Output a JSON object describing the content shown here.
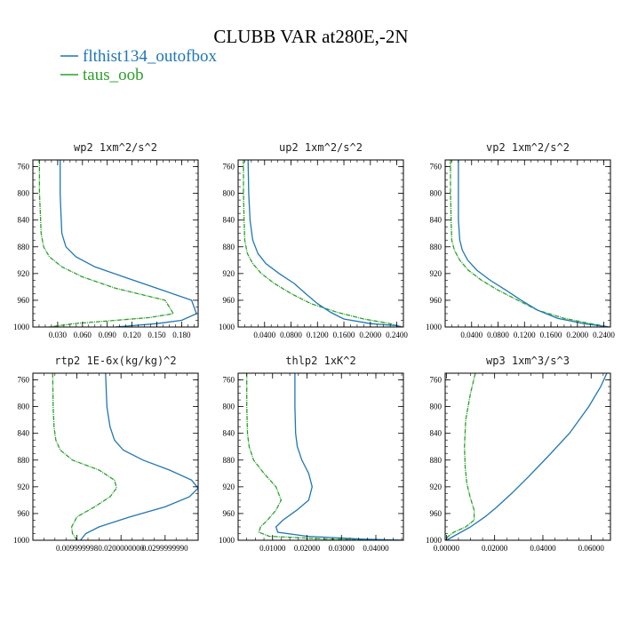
{
  "figure": {
    "title": "CLUBB VAR at280E,-2N",
    "legend": [
      {
        "label": "flthist134_outofbox",
        "color": "#1f77b4"
      },
      {
        "label": "taus_oob",
        "color": "#2ca02c"
      }
    ]
  },
  "chart_data": [
    {
      "type": "line",
      "title": "wp2   1xm^2/s^2",
      "xlim": [
        0.0,
        0.2
      ],
      "ylim": [
        1000,
        750
      ],
      "yticks": [
        760,
        800,
        840,
        880,
        920,
        960,
        1000
      ],
      "xticks": [
        0.03,
        0.06,
        0.09,
        0.12,
        0.15,
        0.18
      ],
      "xtick_labels": [
        "0.030",
        "0.060",
        "0.090",
        "0.120",
        "0.150",
        "0.180"
      ],
      "series": [
        {
          "name": "flthist134_outofbox",
          "color": "#1f77b4",
          "x": [
            0.033,
            0.033,
            0.034,
            0.035,
            0.04,
            0.052,
            0.075,
            0.11,
            0.15,
            0.192,
            0.198,
            0.18,
            0.15,
            0.12,
            0.1
          ],
          "y": [
            750,
            800,
            830,
            860,
            880,
            895,
            910,
            925,
            942,
            960,
            980,
            990,
            995,
            998,
            1000
          ]
        },
        {
          "name": "taus_oob",
          "color": "#2ca02c",
          "x": [
            0.008,
            0.008,
            0.009,
            0.01,
            0.013,
            0.02,
            0.035,
            0.06,
            0.1,
            0.16,
            0.17,
            0.14,
            0.1,
            0.05,
            0.02
          ],
          "y": [
            750,
            800,
            830,
            860,
            880,
            895,
            910,
            925,
            942,
            960,
            980,
            986,
            990,
            995,
            1000
          ]
        }
      ]
    },
    {
      "type": "line",
      "title": "up2   1xm^2/s^2",
      "xlim": [
        0.0,
        0.25
      ],
      "ylim": [
        1000,
        750
      ],
      "yticks": [
        760,
        800,
        840,
        880,
        920,
        960,
        1000
      ],
      "xticks": [
        0.04,
        0.08,
        0.12,
        0.16,
        0.2,
        0.24
      ],
      "xtick_labels": [
        "0.0400",
        "0.0800",
        "0.1200",
        "0.1600",
        "0.2000",
        "0.2400"
      ],
      "series": [
        {
          "name": "flthist134_outofbox",
          "color": "#1f77b4",
          "x": [
            0.015,
            0.016,
            0.018,
            0.022,
            0.03,
            0.042,
            0.062,
            0.085,
            0.102,
            0.12,
            0.14,
            0.16,
            0.2,
            0.24,
            0.248
          ],
          "y": [
            750,
            800,
            840,
            870,
            890,
            905,
            920,
            935,
            950,
            965,
            978,
            988,
            995,
            998,
            1000
          ]
        },
        {
          "name": "taus_oob",
          "color": "#2ca02c",
          "x": [
            0.008,
            0.008,
            0.009,
            0.01,
            0.014,
            0.022,
            0.035,
            0.055,
            0.08,
            0.11,
            0.15,
            0.19,
            0.23,
            0.248
          ],
          "y": [
            750,
            800,
            840,
            870,
            890,
            905,
            920,
            935,
            950,
            965,
            978,
            988,
            995,
            1000
          ]
        }
      ]
    },
    {
      "type": "line",
      "title": "vp2   1xm^2/s^2",
      "xlim": [
        0.0,
        0.25
      ],
      "ylim": [
        1000,
        750
      ],
      "yticks": [
        760,
        800,
        840,
        880,
        920,
        960,
        1000
      ],
      "xticks": [
        0.04,
        0.08,
        0.12,
        0.16,
        0.2,
        0.24
      ],
      "xtick_labels": [
        "0.0400",
        "0.0800",
        "0.1200",
        "0.1600",
        "0.2000",
        "0.2400"
      ],
      "series": [
        {
          "name": "flthist134_outofbox",
          "color": "#1f77b4",
          "x": [
            0.02,
            0.02,
            0.02,
            0.022,
            0.026,
            0.034,
            0.048,
            0.068,
            0.092,
            0.115,
            0.14,
            0.17,
            0.21,
            0.248
          ],
          "y": [
            750,
            800,
            840,
            870,
            885,
            900,
            915,
            930,
            945,
            960,
            975,
            987,
            995,
            1000
          ]
        },
        {
          "name": "taus_oob",
          "color": "#2ca02c",
          "x": [
            0.008,
            0.008,
            0.009,
            0.01,
            0.014,
            0.022,
            0.035,
            0.055,
            0.08,
            0.11,
            0.14,
            0.18,
            0.22,
            0.248
          ],
          "y": [
            750,
            800,
            840,
            870,
            885,
            900,
            915,
            930,
            945,
            960,
            975,
            987,
            995,
            1000
          ]
        }
      ]
    },
    {
      "type": "line",
      "title": "rtp2   1E-6x(kg/kg)^2",
      "xlim": [
        0.0,
        0.0375
      ],
      "ylim": [
        1000,
        750
      ],
      "yticks": [
        760,
        800,
        840,
        880,
        920,
        960,
        1000
      ],
      "xticks": [
        0.01,
        0.02,
        0.03
      ],
      "xtick_labels": [
        "0.009999998",
        "0.0200000000",
        "0.0299999990"
      ],
      "series": [
        {
          "name": "flthist134_outofbox",
          "color": "#1f77b4",
          "x": [
            0.0165,
            0.0168,
            0.0175,
            0.0185,
            0.0205,
            0.025,
            0.031,
            0.036,
            0.0375,
            0.0355,
            0.03,
            0.022,
            0.015,
            0.012,
            0.0108
          ],
          "y": [
            750,
            800,
            830,
            850,
            865,
            880,
            895,
            910,
            922,
            935,
            950,
            965,
            980,
            990,
            1000
          ]
        },
        {
          "name": "taus_oob",
          "color": "#2ca02c",
          "x": [
            0.0045,
            0.0046,
            0.0048,
            0.0052,
            0.0062,
            0.009,
            0.015,
            0.0185,
            0.019,
            0.0175,
            0.014,
            0.01,
            0.0088,
            0.009,
            0.01
          ],
          "y": [
            750,
            800,
            830,
            850,
            865,
            880,
            895,
            910,
            922,
            935,
            950,
            965,
            980,
            990,
            1000
          ]
        }
      ]
    },
    {
      "type": "line",
      "title": "thlp2   1xK^2",
      "xlim": [
        0.0,
        0.048
      ],
      "ylim": [
        1000,
        750
      ],
      "yticks": [
        760,
        800,
        840,
        880,
        920,
        960,
        1000
      ],
      "xticks": [
        0.01,
        0.02,
        0.03,
        0.04
      ],
      "xtick_labels": [
        "0.01000",
        "0.02000",
        "0.03000",
        "0.04000"
      ],
      "series": [
        {
          "name": "flthist134_outofbox",
          "color": "#1f77b4",
          "x": [
            0.0165,
            0.0165,
            0.0167,
            0.0172,
            0.0185,
            0.0205,
            0.0215,
            0.0205,
            0.017,
            0.013,
            0.011,
            0.0115,
            0.02,
            0.035,
            0.048
          ],
          "y": [
            750,
            800,
            840,
            860,
            880,
            900,
            920,
            940,
            955,
            970,
            980,
            988,
            994,
            998,
            1000
          ]
        },
        {
          "name": "taus_oob",
          "color": "#2ca02c",
          "x": [
            0.0025,
            0.0025,
            0.0027,
            0.0032,
            0.0045,
            0.0075,
            0.011,
            0.0125,
            0.011,
            0.0085,
            0.0065,
            0.006,
            0.009,
            0.025,
            0.048
          ],
          "y": [
            750,
            800,
            840,
            860,
            880,
            900,
            920,
            940,
            955,
            970,
            980,
            988,
            994,
            998,
            1000
          ]
        }
      ]
    },
    {
      "type": "line",
      "title": "wp3   1xm^3/s^3",
      "xlim": [
        -0.0005,
        0.068
      ],
      "ylim": [
        1000,
        750
      ],
      "yticks": [
        760,
        800,
        840,
        880,
        920,
        960,
        1000
      ],
      "xticks": [
        0.0,
        0.02,
        0.04,
        0.06
      ],
      "xtick_labels": [
        "0.00000",
        "0.02000",
        "0.04000",
        "0.06000"
      ],
      "series": [
        {
          "name": "flthist134_outofbox",
          "color": "#1f77b4",
          "x": [
            0.0665,
            0.064,
            0.059,
            0.051,
            0.042,
            0.034,
            0.027,
            0.021,
            0.016,
            0.01,
            0.005,
            0.002,
            0.0
          ],
          "y": [
            750,
            770,
            800,
            840,
            875,
            905,
            930,
            950,
            965,
            980,
            990,
            996,
            1000
          ]
        },
        {
          "name": "taus_oob",
          "color": "#2ca02c",
          "x": [
            0.012,
            0.01,
            0.008,
            0.0075,
            0.0078,
            0.0085,
            0.0098,
            0.0115,
            0.0115,
            0.008,
            0.003,
            0.0005,
            0.0
          ],
          "y": [
            750,
            780,
            820,
            860,
            890,
            915,
            935,
            955,
            970,
            980,
            988,
            995,
            1000
          ]
        }
      ]
    }
  ]
}
